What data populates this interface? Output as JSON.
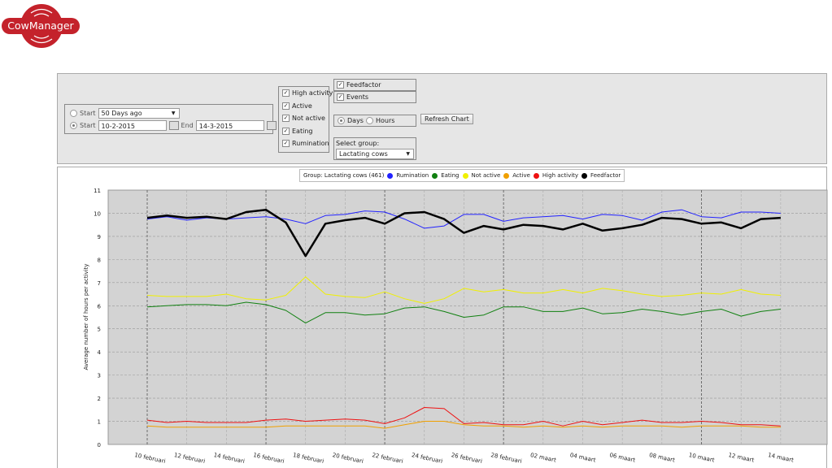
{
  "logo": {
    "text": "CowManager"
  },
  "controls": {
    "start_relative_label": "Start",
    "start_relative_value": "50 Days ago",
    "start_label": "Start",
    "start_value": "10-2-2015",
    "end_label": "End",
    "end_value": "14-3-2015",
    "checkboxes": [
      {
        "label": "High activity",
        "checked": true
      },
      {
        "label": "Active",
        "checked": true
      },
      {
        "label": "Not active",
        "checked": true
      },
      {
        "label": "Eating",
        "checked": true
      },
      {
        "label": "Rumination",
        "checked": true
      }
    ],
    "feedfactor_label": "Feedfactor",
    "events_label": "Events",
    "days_label": "Days",
    "hours_label": "Hours",
    "refresh_label": "Refresh Chart",
    "select_group_label": "Select group:",
    "select_group_value": "Lactating cows"
  },
  "chart_data": {
    "type": "line",
    "legend_title": "Group: Lactating cows (461)",
    "ylabel": "Average number of hours per activity",
    "ylim": [
      0,
      11
    ],
    "yticks": [
      0,
      1,
      2,
      3,
      4,
      5,
      6,
      7,
      8,
      9,
      10,
      11
    ],
    "x_tick_labels": [
      "10 februari",
      "12 februari",
      "14 februari",
      "16 februari",
      "18 februari",
      "20 februari",
      "22 februari",
      "24 februari",
      "26 februari",
      "28 februari",
      "02 maart",
      "04 maart",
      "06 maart",
      "08 maart",
      "10 maart",
      "12 maart",
      "14 maart"
    ],
    "x_days": "daily from 10 februari to 14 maart",
    "series": [
      {
        "name": "Rumination",
        "color": "#2222ff",
        "width": 1,
        "values": [
          9.75,
          9.85,
          9.7,
          9.8,
          9.75,
          9.8,
          9.85,
          9.75,
          9.55,
          9.9,
          9.95,
          10.1,
          10.05,
          9.75,
          9.35,
          9.45,
          9.95,
          9.95,
          9.65,
          9.8,
          9.85,
          9.9,
          9.75,
          9.95,
          9.9,
          9.7,
          10.05,
          10.15,
          9.85,
          9.8,
          10.05,
          10.05,
          10.0
        ]
      },
      {
        "name": "Eating",
        "color": "#108010",
        "width": 1,
        "values": [
          5.95,
          6.0,
          6.05,
          6.05,
          6.0,
          6.15,
          6.05,
          5.8,
          5.25,
          5.7,
          5.7,
          5.6,
          5.65,
          5.9,
          5.95,
          5.75,
          5.5,
          5.6,
          5.95,
          5.95,
          5.75,
          5.75,
          5.9,
          5.65,
          5.7,
          5.85,
          5.75,
          5.6,
          5.75,
          5.85,
          5.55,
          5.75,
          5.85
        ]
      },
      {
        "name": "Not active",
        "color": "#f0f000",
        "width": 1,
        "values": [
          6.45,
          6.4,
          6.4,
          6.4,
          6.5,
          6.3,
          6.25,
          6.45,
          7.25,
          6.5,
          6.4,
          6.35,
          6.6,
          6.3,
          6.1,
          6.3,
          6.75,
          6.6,
          6.7,
          6.55,
          6.55,
          6.7,
          6.55,
          6.75,
          6.65,
          6.5,
          6.4,
          6.45,
          6.55,
          6.5,
          6.7,
          6.5,
          6.45
        ]
      },
      {
        "name": "Active",
        "color": "#f0a000",
        "width": 1,
        "values": [
          0.8,
          0.75,
          0.75,
          0.75,
          0.75,
          0.75,
          0.75,
          0.8,
          0.8,
          0.8,
          0.8,
          0.8,
          0.7,
          0.85,
          1.0,
          1.0,
          0.85,
          0.8,
          0.8,
          0.75,
          0.8,
          0.75,
          0.8,
          0.75,
          0.8,
          0.8,
          0.8,
          0.75,
          0.8,
          0.8,
          0.8,
          0.75,
          0.75
        ]
      },
      {
        "name": "High activity",
        "color": "#ee1111",
        "width": 1,
        "values": [
          1.05,
          0.95,
          1.0,
          0.95,
          0.95,
          0.95,
          1.05,
          1.1,
          1.0,
          1.05,
          1.1,
          1.05,
          0.9,
          1.15,
          1.6,
          1.55,
          0.9,
          0.95,
          0.85,
          0.85,
          1.0,
          0.8,
          1.0,
          0.85,
          0.95,
          1.05,
          0.95,
          0.95,
          1.0,
          0.95,
          0.85,
          0.85,
          0.8
        ]
      },
      {
        "name": "Feedfactor",
        "color": "#000000",
        "width": 2.5,
        "values": [
          9.8,
          9.9,
          9.8,
          9.85,
          9.75,
          10.05,
          10.15,
          9.6,
          8.15,
          9.55,
          9.7,
          9.8,
          9.55,
          10.0,
          10.05,
          9.75,
          9.15,
          9.45,
          9.3,
          9.5,
          9.45,
          9.3,
          9.55,
          9.25,
          9.35,
          9.5,
          9.8,
          9.75,
          9.55,
          9.6,
          9.35,
          9.75,
          9.8
        ]
      }
    ]
  }
}
